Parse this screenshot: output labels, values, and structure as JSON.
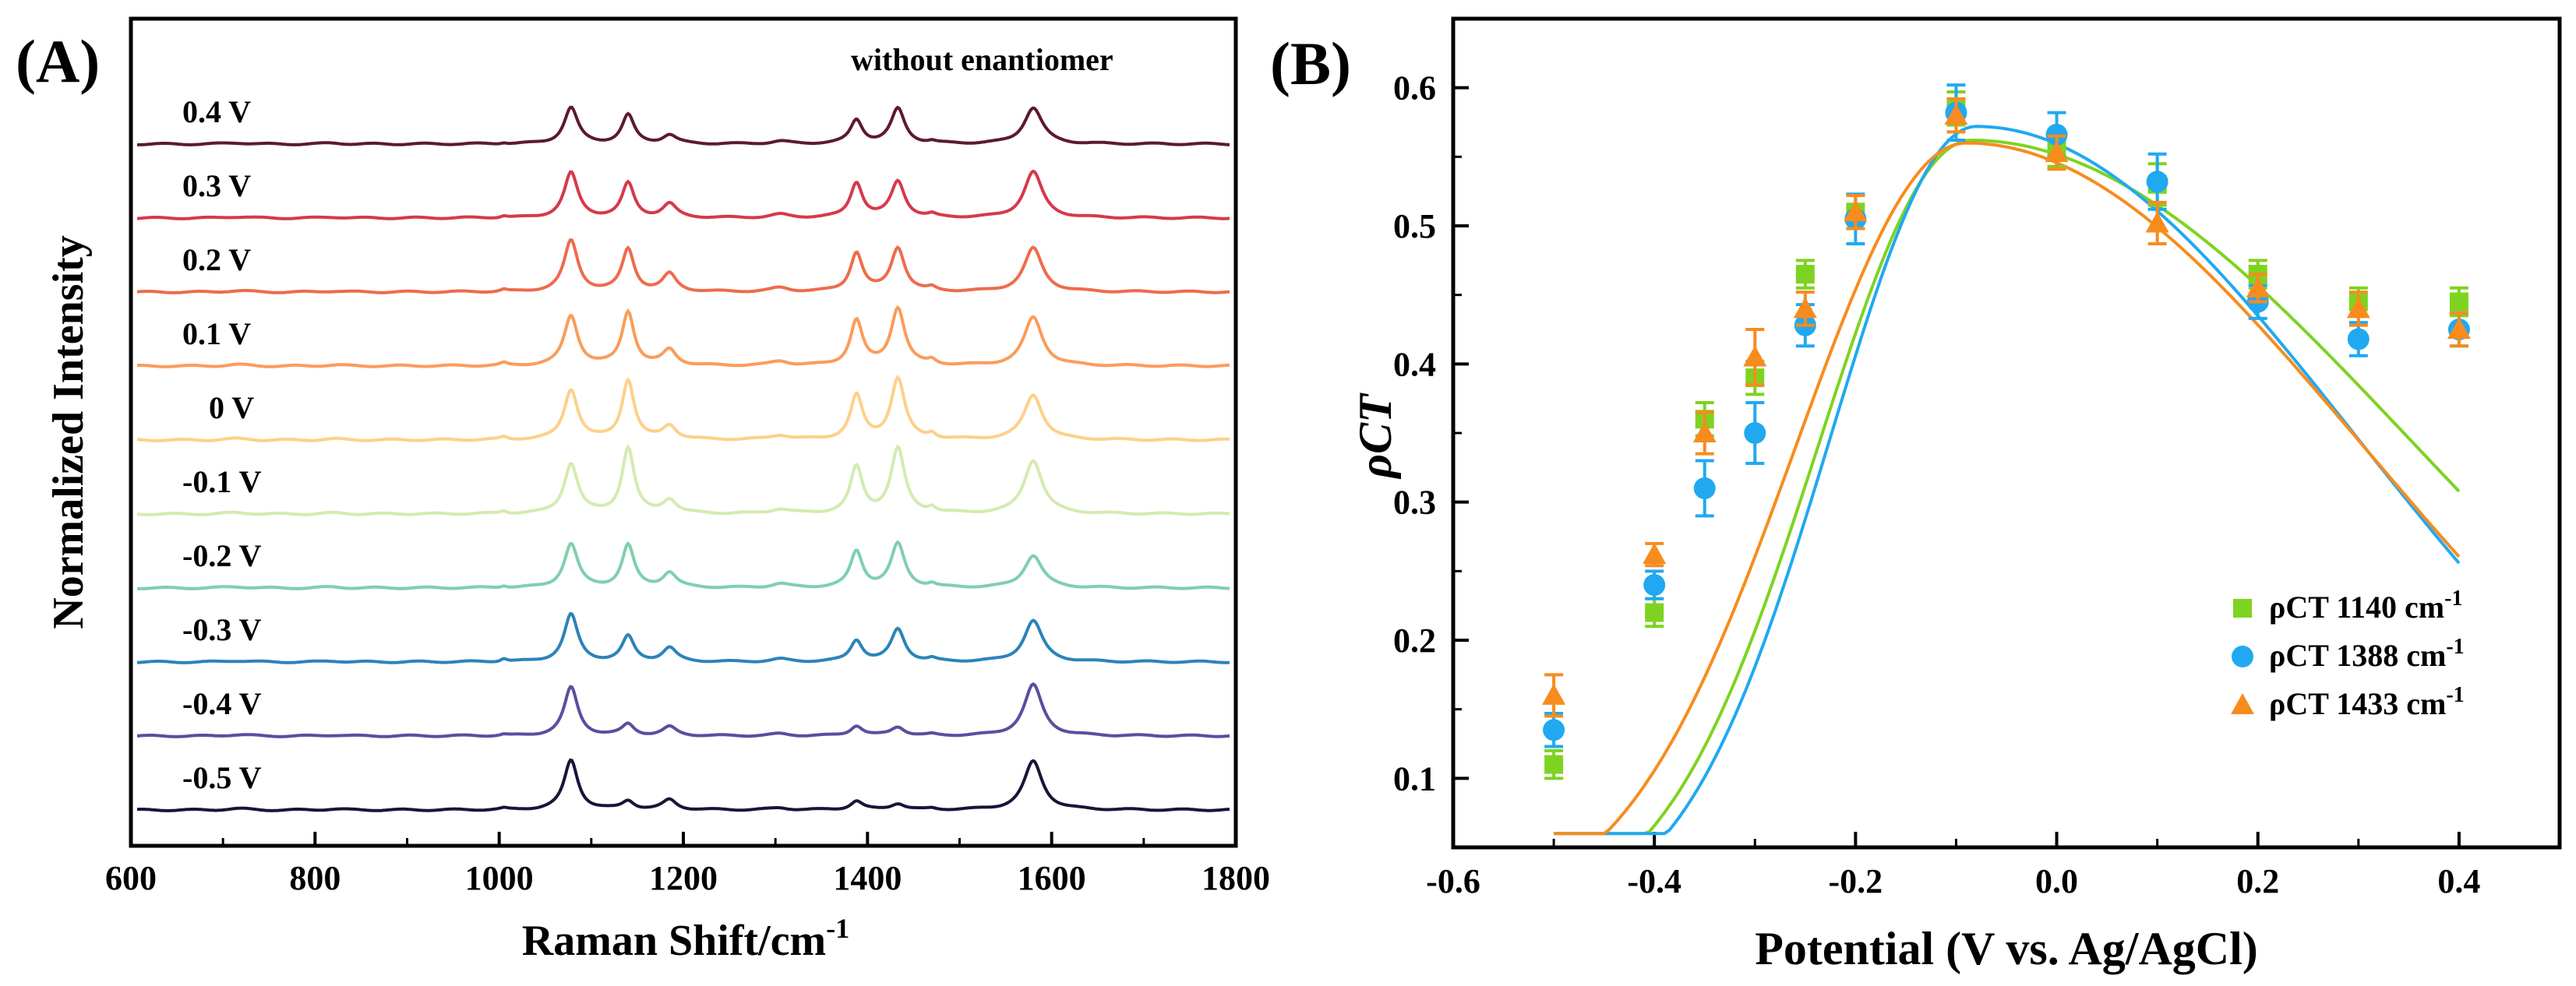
{
  "chart_data": [
    {
      "panel": "(A)",
      "type": "line",
      "annotation": "without enantiomer",
      "xlabel": "Raman Shift/cm",
      "xlabel_sup": "-1",
      "ylabel": "Normalized Intensity",
      "xlim": [
        600,
        1800
      ],
      "xticks": [
        "600",
        "800",
        "1000",
        "1200",
        "1400",
        "1600",
        "1800"
      ],
      "baseline_offset_step": 1,
      "peaks": [
        {
          "pos": 1005,
          "width": 4
        },
        {
          "pos": 1078,
          "width": 9
        },
        {
          "pos": 1140,
          "width": 8
        },
        {
          "pos": 1185,
          "width": 9
        },
        {
          "pos": 1305,
          "width": 12
        },
        {
          "pos": 1388,
          "width": 8
        },
        {
          "pos": 1433,
          "width": 9
        },
        {
          "pos": 1470,
          "width": 5
        },
        {
          "pos": 1580,
          "width": 12
        }
      ],
      "series": [
        {
          "name": "0.4 V",
          "color": "#5c1a2e",
          "amps": [
            0.02,
            0.58,
            0.46,
            0.14,
            0.04,
            0.38,
            0.56,
            0.03,
            0.58
          ]
        },
        {
          "name": "0.3 V",
          "color": "#d6394a",
          "amps": [
            0.03,
            0.72,
            0.55,
            0.22,
            0.05,
            0.56,
            0.58,
            0.04,
            0.74
          ]
        },
        {
          "name": "0.2 V",
          "color": "#ef6b4c",
          "amps": [
            0.03,
            0.82,
            0.68,
            0.28,
            0.06,
            0.62,
            0.7,
            0.05,
            0.7
          ]
        },
        {
          "name": "0.1 V",
          "color": "#fb9c5a",
          "amps": [
            0.04,
            0.8,
            0.86,
            0.25,
            0.07,
            0.72,
            0.92,
            0.07,
            0.78
          ]
        },
        {
          "name": "0 V",
          "color": "#fdd08a",
          "amps": [
            0.04,
            0.8,
            0.95,
            0.22,
            0.07,
            0.7,
            0.98,
            0.08,
            0.72
          ]
        },
        {
          "name": "-0.1 V",
          "color": "#d3ebb0",
          "amps": [
            0.04,
            0.8,
            1.05,
            0.22,
            0.07,
            0.74,
            1.04,
            0.08,
            0.86
          ]
        },
        {
          "name": "-0.2 V",
          "color": "#7fcfae",
          "amps": [
            0.03,
            0.7,
            0.68,
            0.24,
            0.06,
            0.58,
            0.7,
            0.05,
            0.52
          ]
        },
        {
          "name": "-0.3 V",
          "color": "#2c83ba",
          "amps": [
            0.05,
            0.76,
            0.4,
            0.22,
            0.04,
            0.34,
            0.52,
            0.04,
            0.66
          ]
        },
        {
          "name": "-0.4 V",
          "color": "#5e4c9f",
          "amps": [
            0.02,
            0.78,
            0.18,
            0.14,
            0.03,
            0.16,
            0.14,
            0.02,
            0.82
          ]
        },
        {
          "name": "-0.5 V",
          "color": "#1b1338",
          "amps": [
            0.02,
            0.8,
            0.14,
            0.16,
            0.03,
            0.14,
            0.1,
            0.02,
            0.78
          ]
        }
      ]
    },
    {
      "panel": "(B)",
      "type": "scatter",
      "xlabel": "Potential (V vs. Ag/AgCl)",
      "ylabel": "ρCT",
      "xlim": [
        -0.6,
        0.5
      ],
      "ylim": [
        0.05,
        0.65
      ],
      "xticks": [
        -0.6,
        -0.4,
        -0.2,
        0.0,
        0.2,
        0.4
      ],
      "xtick_labels": [
        "-0.6",
        "-0.4",
        "-0.2",
        "0.0",
        "0.2",
        "0.4"
      ],
      "yticks": [
        0.1,
        0.2,
        0.3,
        0.4,
        0.5,
        0.6
      ],
      "ytick_labels": [
        "0.1",
        "0.2",
        "0.3",
        "0.4",
        "0.5",
        "0.6"
      ],
      "legend_position": "lower-right",
      "series": [
        {
          "name": "ρCT 1140 cm-1",
          "prefix": "ρCT 1140 cm",
          "sup": "-1",
          "marker": "square",
          "color": "#7ed321",
          "x": [
            -0.5,
            -0.4,
            -0.35,
            -0.3,
            -0.25,
            -0.2,
            -0.1,
            0.0,
            0.1,
            0.2,
            0.3,
            0.4
          ],
          "y": [
            0.11,
            0.22,
            0.36,
            0.39,
            0.465,
            0.51,
            0.585,
            0.555,
            0.53,
            0.465,
            0.445,
            0.445
          ],
          "err": [
            0.01,
            0.01,
            0.012,
            0.012,
            0.01,
            0.012,
            0.012,
            0.012,
            0.015,
            0.01,
            0.01,
            0.01
          ],
          "fit": {
            "amp": 0.562,
            "mu": -0.085,
            "sigma_left": 0.215,
            "sigma_right": 0.625
          }
        },
        {
          "name": "ρCT 1388 cm-1",
          "prefix": "ρCT 1388 cm",
          "sup": "-1",
          "marker": "circle",
          "color": "#20a9f0",
          "x": [
            -0.5,
            -0.4,
            -0.35,
            -0.3,
            -0.25,
            -0.2,
            -0.1,
            0.0,
            0.1,
            0.2,
            0.3,
            0.4
          ],
          "y": [
            0.135,
            0.24,
            0.31,
            0.35,
            0.428,
            0.505,
            0.582,
            0.566,
            0.532,
            0.445,
            0.418,
            0.425
          ],
          "err": [
            0.012,
            0.01,
            0.02,
            0.022,
            0.015,
            0.018,
            0.02,
            0.016,
            0.02,
            0.012,
            0.012,
            0.012
          ],
          "fit": {
            "amp": 0.572,
            "mu": -0.08,
            "sigma_left": 0.205,
            "sigma_right": 0.535
          }
        },
        {
          "name": "ρCT 1433 cm-1",
          "prefix": "ρCT 1433 cm",
          "sup": "-1",
          "marker": "triangle",
          "color": "#f78c1e",
          "x": [
            -0.5,
            -0.4,
            -0.35,
            -0.3,
            -0.25,
            -0.2,
            -0.1,
            0.0,
            0.1,
            0.2,
            0.3,
            0.4
          ],
          "y": [
            0.16,
            0.262,
            0.35,
            0.405,
            0.44,
            0.51,
            0.58,
            0.553,
            0.502,
            0.455,
            0.44,
            0.425
          ],
          "err": [
            0.015,
            0.008,
            0.015,
            0.02,
            0.012,
            0.012,
            0.012,
            0.012,
            0.015,
            0.01,
            0.012,
            0.012
          ],
          "fit": {
            "amp": 0.56,
            "mu": -0.09,
            "sigma_left": 0.24,
            "sigma_right": 0.56
          }
        }
      ]
    }
  ]
}
